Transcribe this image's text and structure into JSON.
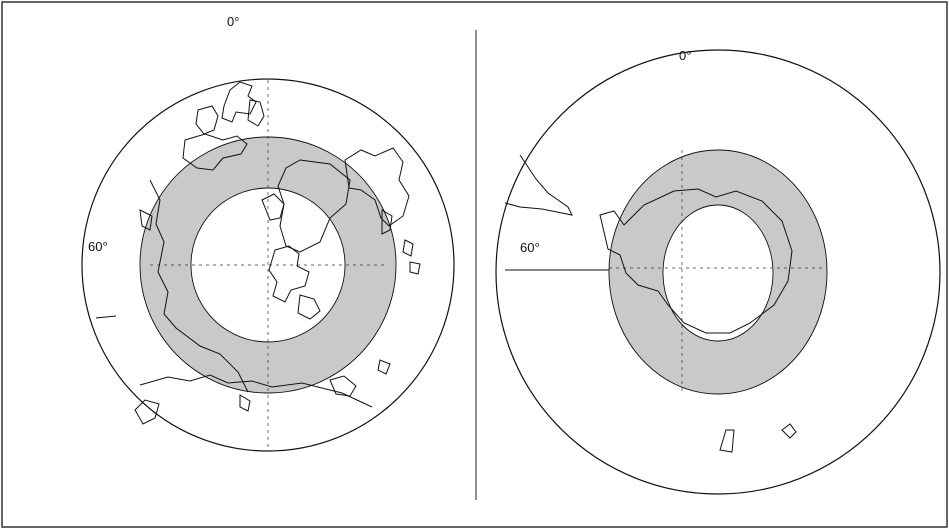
{
  "panels": [
    {
      "id": "north",
      "labels": {
        "top_longitude": "0°",
        "side_latitude": "60°"
      }
    },
    {
      "id": "south",
      "labels": {
        "top_longitude": "0°",
        "side_latitude": "60°"
      }
    }
  ],
  "colors": {
    "band_fill": "#c9c9c9",
    "inner_fill": "#ffffff",
    "line": "#111111",
    "frame": "#333333"
  }
}
